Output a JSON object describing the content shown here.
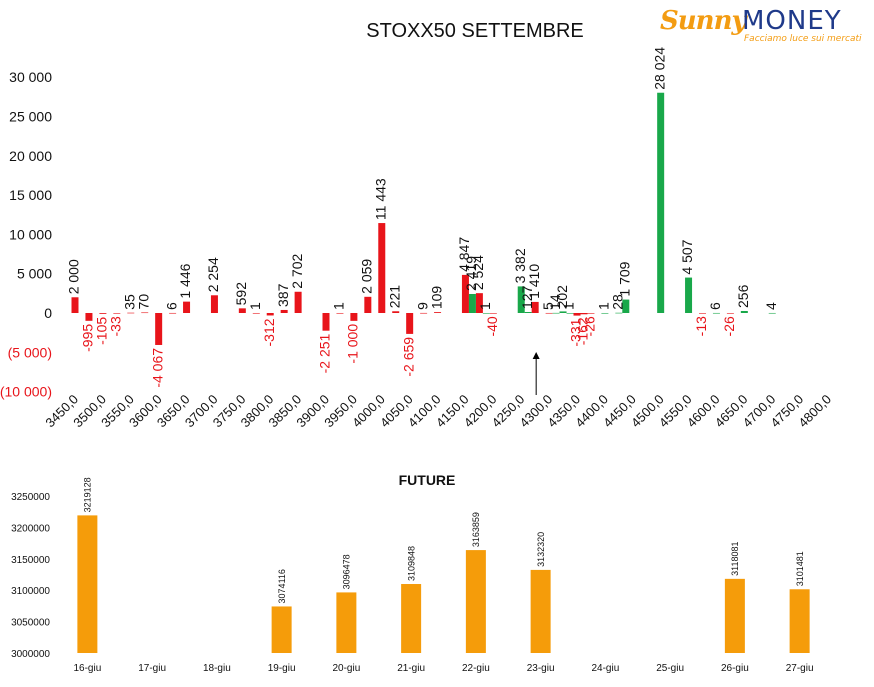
{
  "logo": {
    "brand_first": "Sunny",
    "brand_second": "MONEY",
    "tagline": "Facciamo luce sui mercati"
  },
  "colors": {
    "put": "#e8141a",
    "call": "#19a84a",
    "future": "#f59c0a",
    "negative_label": "#e8141a"
  },
  "chart_data": [
    {
      "type": "bar",
      "title": "STOXX50 SETTEMBRE",
      "xlabel": "",
      "ylabel": "",
      "categories": [
        "3450,0",
        "3500,0",
        "3550,0",
        "3600,0",
        "3650,0",
        "3700,0",
        "3750,0",
        "3800,0",
        "3850,0",
        "3900,0",
        "3950,0",
        "4000,0",
        "4050,0",
        "4100,0",
        "4150,0",
        "4200,0",
        "4250,0",
        "4300,0",
        "4350,0",
        "4400,0",
        "4450,0",
        "4500,0",
        "4550,0",
        "4600,0",
        "4650,0",
        "4700,0",
        "4750,0",
        "4800,0"
      ],
      "y_ticks": [
        "30 000",
        "25 000",
        "20 000",
        "15 000",
        "10 000",
        "5 000",
        "0",
        "(5 000)",
        "(10 000)"
      ],
      "y_tick_values": [
        30000,
        25000,
        20000,
        15000,
        10000,
        5000,
        0,
        -5000,
        -10000
      ],
      "ylim": [
        -10000,
        30000
      ],
      "series": [
        {
          "color": "#e8141a",
          "points": [
            {
              "x": 3450,
              "y": 2000,
              "label": "2 000"
            },
            {
              "x": 3475,
              "y": -995,
              "label": "-995"
            },
            {
              "x": 3500,
              "y": -105,
              "label": "-105"
            },
            {
              "x": 3525,
              "y": -33,
              "label": "-33"
            },
            {
              "x": 3550,
              "y": 35,
              "label": "35"
            },
            {
              "x": 3575,
              "y": 70,
              "label": "70"
            },
            {
              "x": 3600,
              "y": -4067,
              "label": "-4 067"
            },
            {
              "x": 3625,
              "y": 6,
              "label": "6"
            },
            {
              "x": 3650,
              "y": 1446,
              "label": "1 446"
            },
            {
              "x": 3700,
              "y": 2254,
              "label": "2 254"
            },
            {
              "x": 3750,
              "y": 592,
              "label": "592"
            },
            {
              "x": 3775,
              "y": 1,
              "label": "1"
            },
            {
              "x": 3800,
              "y": -312,
              "label": "-312"
            },
            {
              "x": 3825,
              "y": 387,
              "label": "387"
            },
            {
              "x": 3850,
              "y": 2702,
              "label": "2 702"
            },
            {
              "x": 3900,
              "y": -2251,
              "label": "-2 251"
            },
            {
              "x": 3925,
              "y": 1,
              "label": "1"
            },
            {
              "x": 3950,
              "y": -1000,
              "label": "-1 000"
            },
            {
              "x": 3975,
              "y": 2059,
              "label": "2 059"
            },
            {
              "x": 4000,
              "y": 11443,
              "label": "11 443"
            },
            {
              "x": 4025,
              "y": 221,
              "label": "221"
            },
            {
              "x": 4050,
              "y": -2659,
              "label": "-2 659"
            },
            {
              "x": 4075,
              "y": 9,
              "label": "9"
            },
            {
              "x": 4100,
              "y": 109,
              "label": "109"
            },
            {
              "x": 4150,
              "y": 4847,
              "label": "4 847"
            },
            {
              "x": 4175,
              "y": 2524,
              "label": "2 524"
            },
            {
              "x": 4200,
              "y": -40,
              "label": "-40"
            },
            {
              "x": 4275,
              "y": 1410,
              "label": "1 410"
            },
            {
              "x": 4300,
              "y": 5,
              "label": "5"
            },
            {
              "x": 4350,
              "y": -331,
              "label": "-331"
            },
            {
              "x": 4362.5,
              "y": -162,
              "label": "-162"
            },
            {
              "x": 4375,
              "y": -26,
              "label": "-26"
            },
            {
              "x": 4575,
              "y": -13,
              "label": "-13"
            },
            {
              "x": 4625,
              "y": -26,
              "label": "-26"
            }
          ]
        },
        {
          "color": "#19a84a",
          "points": [
            {
              "x": 4162.5,
              "y": 2419,
              "label": "2 419"
            },
            {
              "x": 4187.5,
              "y": 1,
              "label": "1"
            },
            {
              "x": 4250,
              "y": 3382,
              "label": "3 382"
            },
            {
              "x": 4262.5,
              "y": 127,
              "label": "127"
            },
            {
              "x": 4312.5,
              "y": 14,
              "label": "14"
            },
            {
              "x": 4325,
              "y": 202,
              "label": "202"
            },
            {
              "x": 4337.5,
              "y": 1,
              "label": "1"
            },
            {
              "x": 4400,
              "y": 1,
              "label": "1"
            },
            {
              "x": 4437.5,
              "y": 1709,
              "label": "1 709"
            },
            {
              "x": 4425,
              "y": 28,
              "label": "28"
            },
            {
              "x": 4500,
              "y": 28024,
              "label": "28 024"
            },
            {
              "x": 4550,
              "y": 4507,
              "label": "4 507"
            },
            {
              "x": 4600,
              "y": 6,
              "label": "6"
            },
            {
              "x": 4650,
              "y": 256,
              "label": "256"
            },
            {
              "x": 4700,
              "y": 4,
              "label": "4"
            }
          ]
        }
      ],
      "marker": {
        "x": 4275,
        "label": "↑"
      }
    },
    {
      "type": "bar",
      "title": "FUTURE",
      "xlabel": "",
      "ylabel": "",
      "categories": [
        "16-giu",
        "17-giu",
        "18-giu",
        "19-giu",
        "20-giu",
        "21-giu",
        "22-giu",
        "23-giu",
        "24-giu",
        "25-giu",
        "26-giu",
        "27-giu"
      ],
      "values": [
        3219128,
        null,
        null,
        3074116,
        3096478,
        3109848,
        3163859,
        3132320,
        null,
        null,
        3118081,
        3101481
      ],
      "value_labels": [
        "3219128",
        "",
        "",
        "3074116",
        "3096478",
        "3109848",
        "3163859",
        "3132320",
        "",
        "",
        "3118081",
        "3101481"
      ],
      "y_ticks": [
        "3250000",
        "3200000",
        "3150000",
        "3100000",
        "3050000",
        "3000000"
      ],
      "y_tick_values": [
        3250000,
        3200000,
        3150000,
        3100000,
        3050000,
        3000000
      ],
      "ylim": [
        3000000,
        3250000
      ]
    }
  ]
}
